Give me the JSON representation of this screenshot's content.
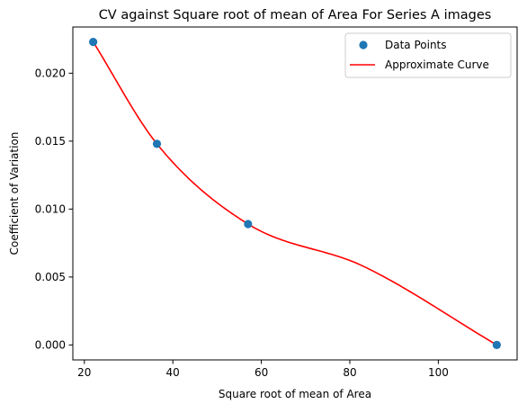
{
  "chart_data": {
    "type": "scatter",
    "title": "CV against Square root of mean of Area For Series A images",
    "xlabel": "Square root of mean of Area",
    "ylabel": "Coefficient of Variation",
    "xlim": [
      17.4,
      117.8
    ],
    "ylim": [
      -0.0011,
      0.0234
    ],
    "xticks": [
      20,
      40,
      60,
      80,
      100
    ],
    "yticks": [
      0.0,
      0.005,
      0.01,
      0.015,
      0.02
    ],
    "ytick_labels": [
      "0.000",
      "0.005",
      "0.010",
      "0.015",
      "0.020"
    ],
    "grid": false,
    "legend_position": "top-right",
    "series": [
      {
        "name": "Data Points",
        "kind": "scatter",
        "color": "#1f77b4",
        "x": [
          22.0,
          36.4,
          57.0,
          113.2
        ],
        "y": [
          0.0223,
          0.0148,
          0.0089,
          0.0
        ]
      },
      {
        "name": "Approximate Curve",
        "kind": "line",
        "color": "#ff0000",
        "x": [
          22.0,
          36.4,
          57.0,
          83.0,
          113.2
        ],
        "y": [
          0.0223,
          0.0148,
          0.0089,
          0.0058,
          0.0
        ]
      }
    ]
  }
}
